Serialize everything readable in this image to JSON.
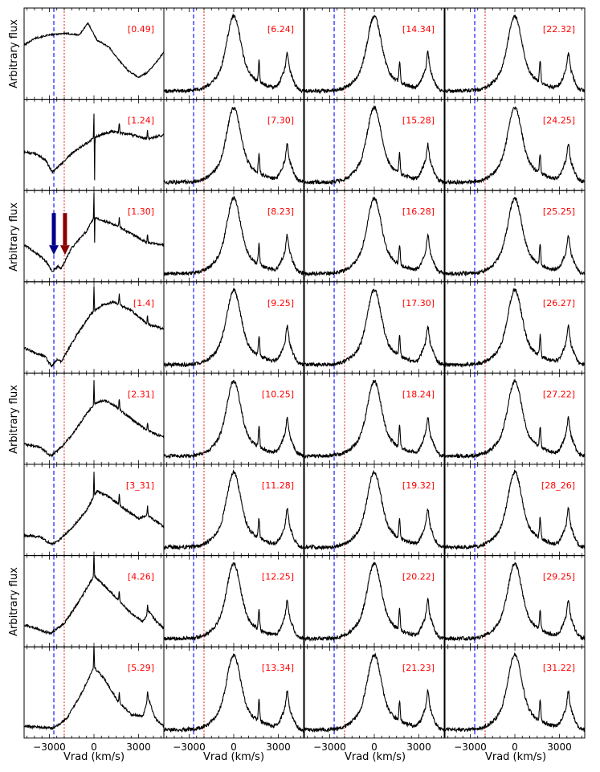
{
  "figure": {
    "ylabel": "Arbitrary flux",
    "xlabel": "Vrad (km/s)"
  },
  "chart_data": {
    "type": "line",
    "grid": false,
    "layout_cols": 4,
    "layout_rows": 8,
    "xlim": [
      -4700,
      4700
    ],
    "xticks": [
      -3000,
      0,
      3000
    ],
    "xtick_labels": [
      "−3000",
      "0",
      "3000"
    ],
    "xlabel": "Vrad (km/s)",
    "ylabel": "Arbitrary flux",
    "ref_lines": [
      {
        "x": -2700,
        "color": "#0000ff",
        "style": "dashed"
      },
      {
        "x": -2000,
        "color": "#dd0000",
        "style": "dotted"
      }
    ],
    "label_color": "#ff0000",
    "arrows": [
      {
        "panel": "[1.30]",
        "x": -2700,
        "color": "#00008b"
      },
      {
        "panel": "[1.30]",
        "x": -1950,
        "color": "#8b0000"
      }
    ],
    "panels": [
      {
        "label": "[0.49]",
        "col": 0,
        "row": 0,
        "kind": "early0"
      },
      {
        "label": "[1.24]",
        "col": 0,
        "row": 1,
        "kind": "early1"
      },
      {
        "label": "[1.30]",
        "col": 0,
        "row": 2,
        "kind": "early2"
      },
      {
        "label": "[1.4]",
        "col": 0,
        "row": 3,
        "kind": "early3"
      },
      {
        "label": "[2.31]",
        "col": 0,
        "row": 4,
        "kind": "early4"
      },
      {
        "label": "[3_31]",
        "col": 0,
        "row": 5,
        "kind": "early5"
      },
      {
        "label": "[4.26]",
        "col": 0,
        "row": 6,
        "kind": "early6"
      },
      {
        "label": "[5.29]",
        "col": 0,
        "row": 7,
        "kind": "early7"
      },
      {
        "label": "[6.24]",
        "col": 1,
        "row": 0,
        "kind": "late"
      },
      {
        "label": "[7.30]",
        "col": 1,
        "row": 1,
        "kind": "late"
      },
      {
        "label": "[8.23]",
        "col": 1,
        "row": 2,
        "kind": "late"
      },
      {
        "label": "[9.25]",
        "col": 1,
        "row": 3,
        "kind": "late"
      },
      {
        "label": "[10.25]",
        "col": 1,
        "row": 4,
        "kind": "late"
      },
      {
        "label": "[11.28]",
        "col": 1,
        "row": 5,
        "kind": "late"
      },
      {
        "label": "[12.25]",
        "col": 1,
        "row": 6,
        "kind": "late"
      },
      {
        "label": "[13.34]",
        "col": 1,
        "row": 7,
        "kind": "late"
      },
      {
        "label": "[14.34]",
        "col": 2,
        "row": 0,
        "kind": "late"
      },
      {
        "label": "[15.28]",
        "col": 2,
        "row": 1,
        "kind": "late"
      },
      {
        "label": "[16.28]",
        "col": 2,
        "row": 2,
        "kind": "late"
      },
      {
        "label": "[17.30]",
        "col": 2,
        "row": 3,
        "kind": "late"
      },
      {
        "label": "[18.24]",
        "col": 2,
        "row": 4,
        "kind": "late"
      },
      {
        "label": "[19.32]",
        "col": 2,
        "row": 5,
        "kind": "late"
      },
      {
        "label": "[20.22]",
        "col": 2,
        "row": 6,
        "kind": "late"
      },
      {
        "label": "[21.23]",
        "col": 2,
        "row": 7,
        "kind": "late"
      },
      {
        "label": "[22.32]",
        "col": 3,
        "row": 0,
        "kind": "late"
      },
      {
        "label": "[24.25]",
        "col": 3,
        "row": 1,
        "kind": "late"
      },
      {
        "label": "[25.25]",
        "col": 3,
        "row": 2,
        "kind": "late"
      },
      {
        "label": "[26.27]",
        "col": 3,
        "row": 3,
        "kind": "late"
      },
      {
        "label": "[27.22]",
        "col": 3,
        "row": 4,
        "kind": "late"
      },
      {
        "label": "[28_26]",
        "col": 3,
        "row": 5,
        "kind": "late"
      },
      {
        "label": "[29.25]",
        "col": 3,
        "row": 6,
        "kind": "late"
      },
      {
        "label": "[31.22]",
        "col": 3,
        "row": 7,
        "kind": "late"
      }
    ]
  }
}
